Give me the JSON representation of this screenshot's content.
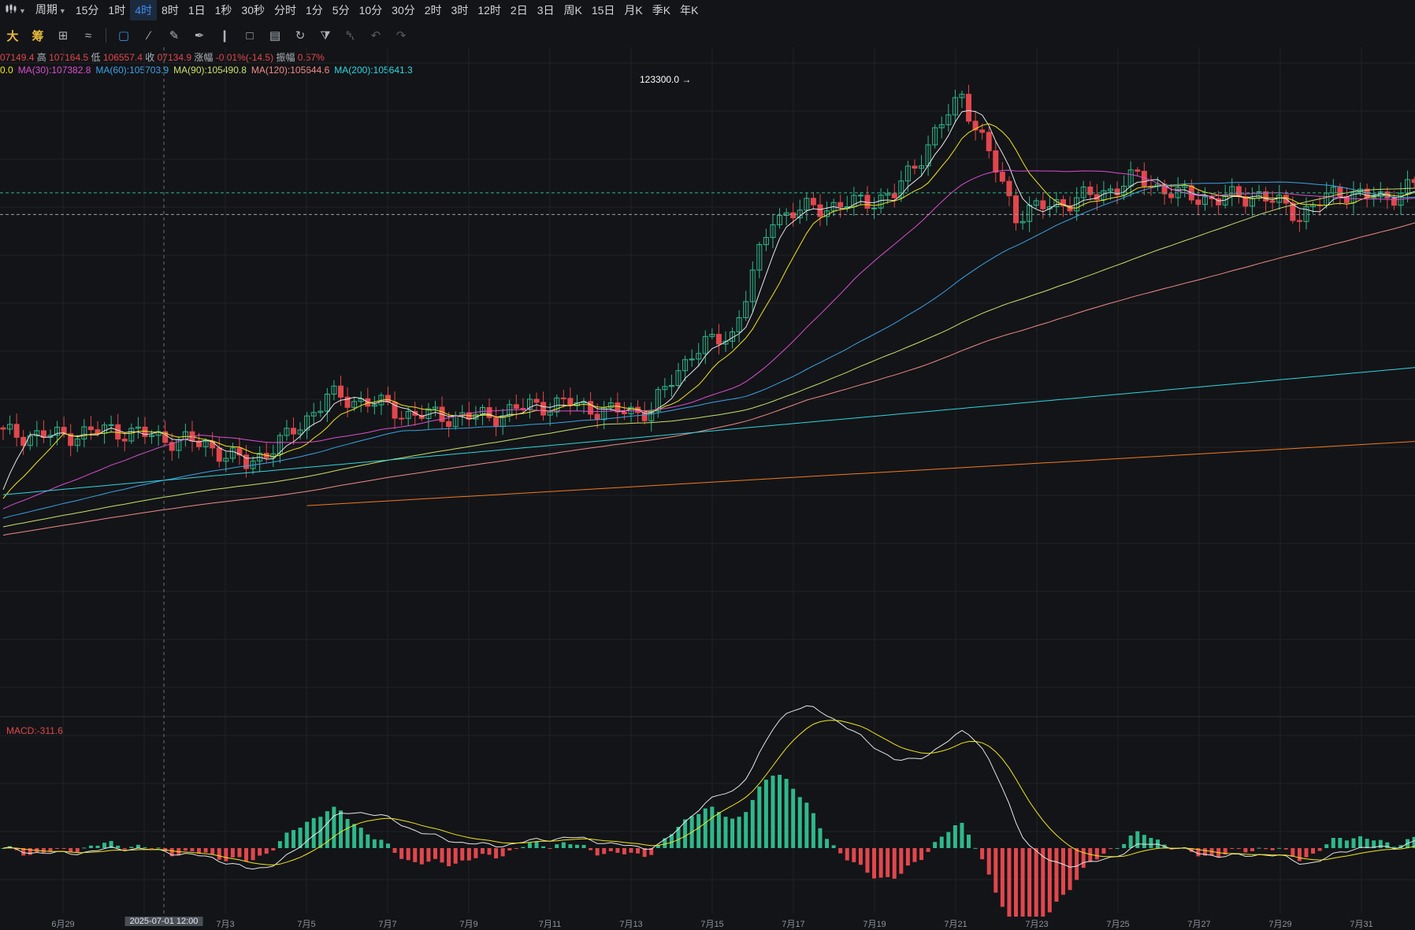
{
  "topbar": {
    "chart_type_icon": "candlestick-icon",
    "period_label": "周期",
    "intervals": [
      "15分",
      "1时",
      "4时",
      "8时",
      "1日",
      "1秒",
      "30秒",
      "分时",
      "1分",
      "5分",
      "10分",
      "30分",
      "2时",
      "3时",
      "12时",
      "2日",
      "3日",
      "周K",
      "15日",
      "月K",
      "季K",
      "年K"
    ],
    "active_interval": "4时"
  },
  "toolbar": {
    "big_label": "大",
    "chip_label": "筹",
    "tools": [
      "overlay-icon",
      "trendline-icon",
      "pencil-icon",
      "brush-icon",
      "candles-icon",
      "lock-icon",
      "note-icon",
      "magnet-icon",
      "filter-icon",
      "trash-icon",
      "undo-icon",
      "redo-icon"
    ]
  },
  "legend": {
    "ohlc": {
      "open_value": "07149.4",
      "high_label": "高",
      "high_value": "107164.5",
      "low_label": "低",
      "low_value": "106557.4",
      "close_label": "收",
      "close_value": "07134.9",
      "change_label": "涨幅",
      "change_value": "-0.01%(-14.5)",
      "amp_label": "振幅",
      "amp_value": "0.57%"
    },
    "ma": [
      {
        "text": "0.0",
        "color": "#f2e71a"
      },
      {
        "text": "MA(30):107382.8",
        "color": "#d94fd0"
      },
      {
        "text": "MA(60):105703.9",
        "color": "#3aa3e8"
      },
      {
        "text": "MA(90):105490.8",
        "color": "#c9e06a"
      },
      {
        "text": "MA(120):105644.6",
        "color": "#f08a8a"
      },
      {
        "text": "MA(200):105641.3",
        "color": "#2fd6e0"
      }
    ]
  },
  "macd": {
    "label": "MACD:-311.6"
  },
  "peak_label": "123300.0",
  "x_axis": {
    "labels": [
      "6月29",
      "7月3",
      "7月5",
      "7月7",
      "7月9",
      "7月11",
      "7月13",
      "7月15",
      "7月17",
      "7月19",
      "7月21",
      "7月23",
      "7月25",
      "7月27",
      "7月29",
      "7月31"
    ],
    "cursor_label": "2025-07-01 12:00"
  },
  "colors": {
    "up": "#2eb88a",
    "down": "#e0474d",
    "bg": "#131417",
    "grid": "#1f2227"
  },
  "chart_data": {
    "type": "candlestick",
    "interval": "4h",
    "price_range": [
      96000,
      125000
    ],
    "macd_range": [
      -1500,
      1600
    ],
    "peak": 123300.0,
    "ma_lines": [
      {
        "name": "MA(30)",
        "color": "#d94fd0"
      },
      {
        "name": "MA(60)",
        "color": "#3aa3e8"
      },
      {
        "name": "MA(90)",
        "color": "#c9e06a"
      },
      {
        "name": "MA(120)",
        "color": "#f08a8a"
      },
      {
        "name": "MA(200)",
        "color": "#2fd6e0"
      }
    ],
    "close_anchors": [
      [
        0,
        107200
      ],
      [
        8,
        107100
      ],
      [
        16,
        107400
      ],
      [
        24,
        107000
      ],
      [
        30,
        106700
      ],
      [
        36,
        105800
      ],
      [
        42,
        107000
      ],
      [
        48,
        108900
      ],
      [
        54,
        108700
      ],
      [
        60,
        108100
      ],
      [
        66,
        108000
      ],
      [
        72,
        108000
      ],
      [
        78,
        108500
      ],
      [
        84,
        108600
      ],
      [
        90,
        108200
      ],
      [
        96,
        108300
      ],
      [
        102,
        111000
      ],
      [
        108,
        111800
      ],
      [
        114,
        117200
      ],
      [
        120,
        117600
      ],
      [
        126,
        117800
      ],
      [
        132,
        118200
      ],
      [
        138,
        121000
      ],
      [
        142,
        122800
      ],
      [
        150,
        117300
      ],
      [
        156,
        117800
      ],
      [
        162,
        118200
      ],
      [
        168,
        119000
      ],
      [
        174,
        118200
      ],
      [
        180,
        118000
      ],
      [
        186,
        118200
      ],
      [
        192,
        117300
      ],
      [
        198,
        118400
      ],
      [
        204,
        118000
      ],
      [
        210,
        118800
      ],
      [
        216,
        117600
      ],
      [
        222,
        118100
      ],
      [
        228,
        117800
      ],
      [
        234,
        115200
      ],
      [
        240,
        117400
      ],
      [
        246,
        117900
      ],
      [
        252,
        118700
      ],
      [
        258,
        119000
      ],
      [
        264,
        118000
      ],
      [
        270,
        117700
      ]
    ]
  }
}
